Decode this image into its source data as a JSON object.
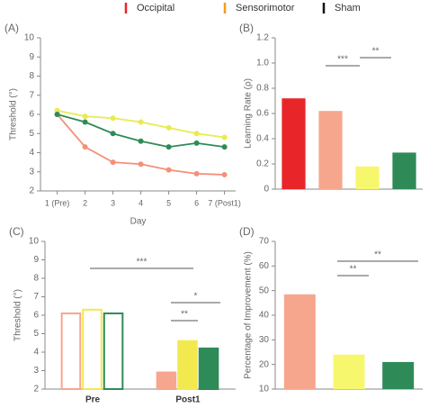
{
  "legend": [
    {
      "name": "Occipital",
      "color": "#e8262a"
    },
    {
      "name": "Sensorimotor",
      "color": "#f39c1e"
    },
    {
      "name": "Sham",
      "color": "#111111"
    }
  ],
  "chart_data": [
    {
      "type": "line",
      "panel": "(A)",
      "y_label": "Threshold (°)",
      "x_label": "Day",
      "xlim": [
        0.4,
        7.4
      ],
      "xticks": [
        {
          "value": 1,
          "label": "1 (Pre)"
        },
        2,
        3,
        4,
        5,
        6,
        {
          "value": 7,
          "label": "7 (Post1)"
        }
      ],
      "ylim": [
        2,
        10
      ],
      "yticks": [
        2,
        3,
        4,
        5,
        6,
        7,
        8,
        9,
        10
      ],
      "x": [
        1,
        2,
        3,
        4,
        5,
        6,
        7
      ],
      "series": [
        {
          "name": "Occipital",
          "color": "#f4907a",
          "values": [
            6.0,
            4.3,
            3.5,
            3.4,
            3.1,
            2.9,
            2.85
          ]
        },
        {
          "name": "Sensorimotor",
          "color": "#eaea50",
          "values": [
            6.2,
            5.9,
            5.8,
            5.6,
            5.3,
            5.0,
            4.8
          ]
        },
        {
          "name": "Sham",
          "color": "#2e8b57",
          "values": [
            6.0,
            5.6,
            5.0,
            4.6,
            4.3,
            4.5,
            4.3
          ]
        }
      ]
    },
    {
      "type": "bar",
      "panel": "(B)",
      "y_label": "Learning Rate (ρ)",
      "ylim": [
        0,
        1.2
      ],
      "yticks": [
        0,
        0.2,
        0.4,
        0.6,
        0.8,
        {
          "value": 1.0,
          "label": "1.0"
        },
        1.2
      ],
      "values": [
        0.72,
        0.62,
        0.18,
        0.29
      ],
      "colors": [
        "#e8262a",
        "#f7a68e",
        "#f7f76e",
        "#2e8b57"
      ],
      "annotations": [
        "***",
        "**"
      ]
    },
    {
      "type": "bar",
      "panel": "(C)",
      "y_label": "Threshold (°)",
      "ylim": [
        2,
        10
      ],
      "yticks": [
        2,
        3,
        4,
        5,
        6,
        7,
        8,
        9,
        10
      ],
      "categories": [
        "Pre",
        "Post1"
      ],
      "filled": [
        false,
        true
      ],
      "series": [
        {
          "name": "Occipital",
          "color": "#f7a68e",
          "values": [
            6.1,
            2.9
          ]
        },
        {
          "name": "Sensorimotor",
          "color": "#f2e94e",
          "values": [
            6.3,
            4.6
          ]
        },
        {
          "name": "Sham",
          "color": "#2e8b57",
          "values": [
            6.1,
            4.2
          ]
        }
      ],
      "annotations": [
        "***",
        "*",
        "**"
      ]
    },
    {
      "type": "bar",
      "panel": "(D)",
      "y_label": "Percentage of Improvement (%)",
      "ylim": [
        10,
        70
      ],
      "yticks": [
        10,
        20,
        30,
        40,
        50,
        60,
        70
      ],
      "values": [
        48.5,
        24,
        21
      ],
      "colors": [
        "#f7a68e",
        "#f7f76e",
        "#2e8b57"
      ],
      "annotations": [
        "**",
        "**"
      ]
    }
  ]
}
